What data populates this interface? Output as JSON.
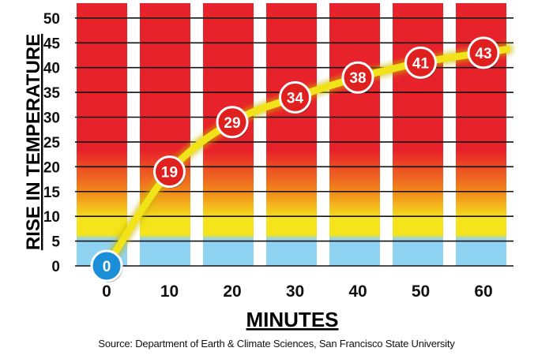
{
  "chart_data": {
    "type": "line",
    "title": "",
    "xlabel": "MINUTES",
    "ylabel": "RISE IN TEMPERATURE",
    "x": [
      0,
      10,
      20,
      30,
      40,
      50,
      60
    ],
    "series": [
      {
        "values": [
          0,
          19,
          29,
          34,
          38,
          41,
          43
        ]
      }
    ],
    "xticks": [
      "0",
      "10",
      "20",
      "30",
      "40",
      "50",
      "60"
    ],
    "yticks": [
      "0",
      "5",
      "10",
      "15",
      "20",
      "25",
      "30",
      "35",
      "40",
      "45",
      "50"
    ],
    "ylim": [
      0,
      53
    ],
    "grid": true,
    "colors": {
      "line": "#f2e21a",
      "marker_fill": "#e0201e",
      "first_marker_fill": "#1a8fd8",
      "marker_border": "#ffffff",
      "band_top": "#e8222a",
      "band_mid": "#f28a1c",
      "band_yellow": "#f5e31c",
      "band_bottom": "#8fd3f2"
    }
  },
  "source": "Source: Department of Earth & Climate Sciences, San Francisco State University"
}
